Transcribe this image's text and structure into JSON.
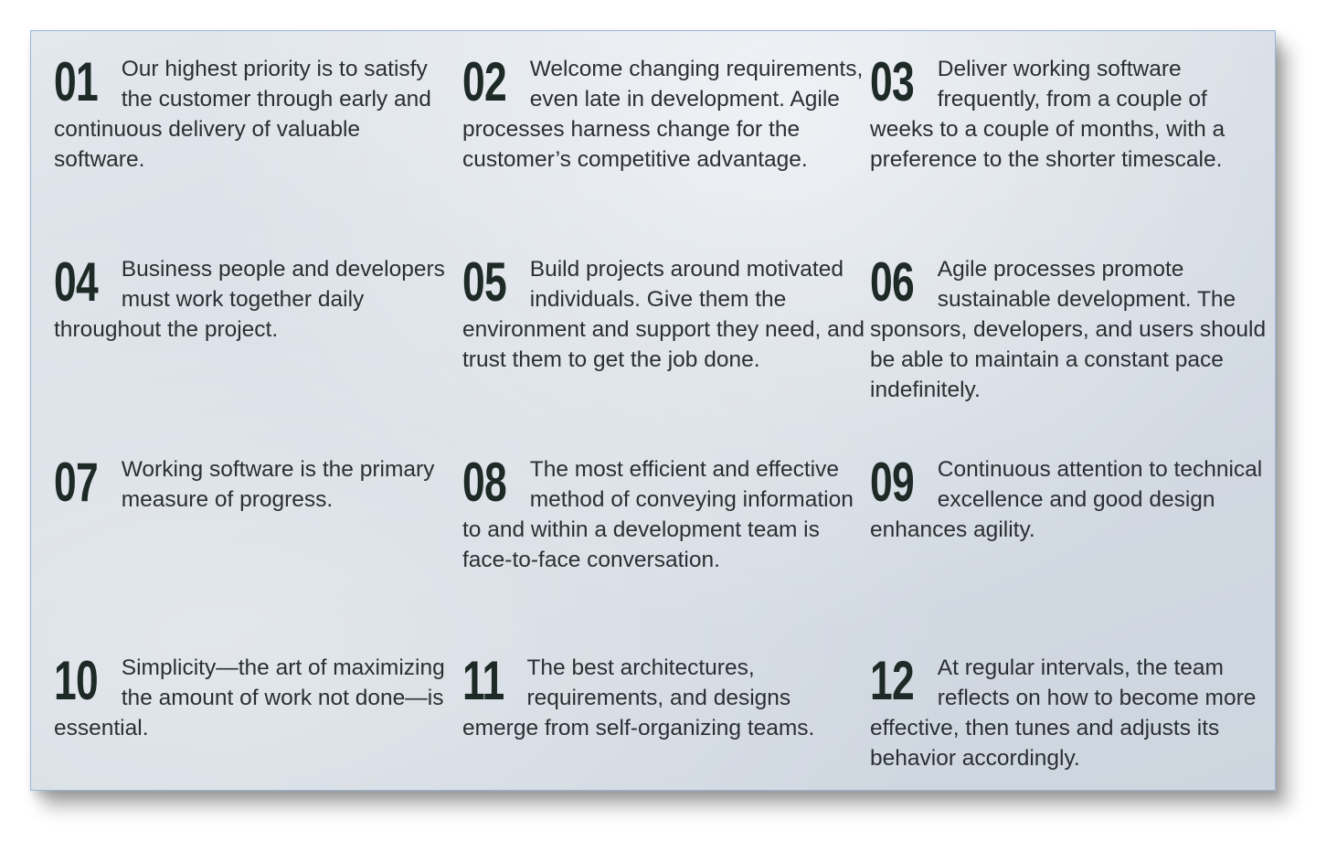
{
  "principles": [
    {
      "number": "01",
      "text": "Our highest priority is to satisfy the customer through early and continuous delivery of valuable software."
    },
    {
      "number": "02",
      "text": "Welcome changing requirements, even late in development. Agile processes harness change for the customer’s competitive advantage."
    },
    {
      "number": "03",
      "text": "Deliver working software frequently, from a couple of weeks to a couple of months, with a preference to the shorter timescale."
    },
    {
      "number": "04",
      "text": "Business people and developers must work together daily throughout the project."
    },
    {
      "number": "05",
      "text": "Build projects around motivated individuals. Give them the environment and support they need, and trust them to get the  job done."
    },
    {
      "number": "06",
      "text": "Agile processes promote sustainable development. The sponsors, developers, and users should be able to maintain a constant pace indefinitely."
    },
    {
      "number": "07",
      "text": "Working software is the primary measure of progress."
    },
    {
      "number": "08",
      "text": "The most efficient and effective method of conveying information to and within a development team is face-to-face conversation."
    },
    {
      "number": "09",
      "text": "Continuous attention to technical excellence and good design enhances agility."
    },
    {
      "number": "10",
      "text": "Simplicity—the art of maximizing the amount of work not done—is essential."
    },
    {
      "number": "11",
      "text": "The best architectures, requirements, and designs emerge from self-organizing teams."
    },
    {
      "number": "12",
      "text": "At regular intervals, the team reflects on how to become more effective, then tunes and adjusts its behavior accordingly."
    }
  ]
}
